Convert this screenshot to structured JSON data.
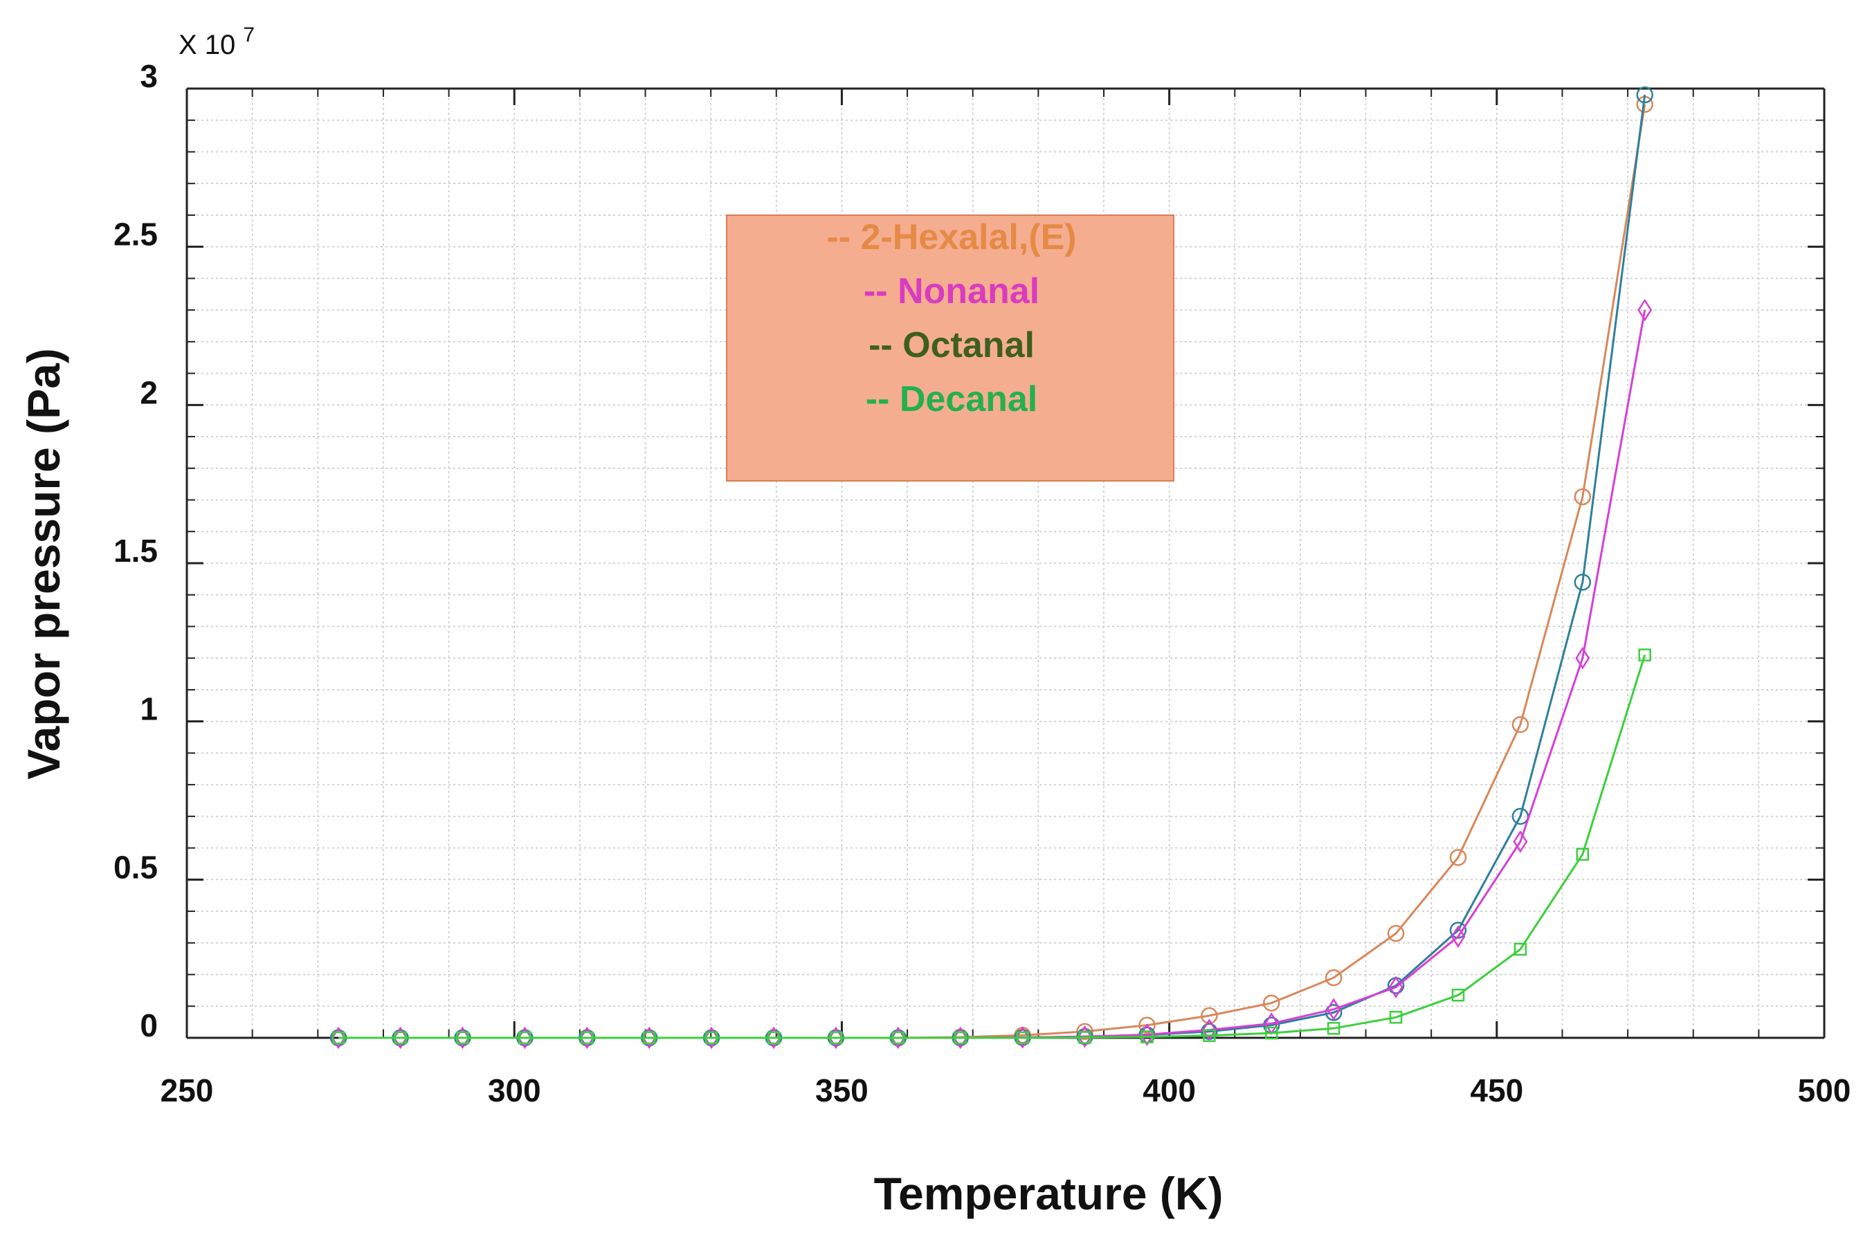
{
  "chart_data": {
    "type": "line",
    "title": "",
    "xlabel": "Temperature (K)",
    "ylabel": "Vapor pressure (Pa)",
    "y_multiplier_label": "X 10",
    "y_multiplier_exponent": "7",
    "xlim": [
      250,
      500
    ],
    "ylim": [
      0,
      3
    ],
    "x_ticks": [
      250,
      300,
      350,
      400,
      450,
      500
    ],
    "y_ticks": [
      0,
      0.5,
      1,
      1.5,
      2,
      2.5,
      3
    ],
    "y_tick_labels": [
      "0",
      "0.5",
      "1",
      "1.5",
      "2",
      "2.5",
      "3"
    ],
    "grid": true,
    "legend_position": "upper-center",
    "legend_background": "#f5ad90",
    "legend": [
      {
        "label": "--  2-Hexalal,(E)",
        "color": "#e58a45"
      },
      {
        "label": "-- Nonanal",
        "color": "#d93bc1"
      },
      {
        "label": "-- Octanal",
        "color": "#3f5f1f"
      },
      {
        "label": "-- Decanal",
        "color": "#22b14c"
      }
    ],
    "x": [
      273.15,
      282.6,
      292.1,
      301.6,
      311.1,
      320.6,
      330.1,
      339.6,
      349.1,
      358.6,
      368.1,
      377.6,
      387.1,
      396.6,
      406.1,
      415.6,
      425.1,
      434.6,
      444.1,
      453.6,
      463.1,
      472.6
    ],
    "series": [
      {
        "name": "2-Hexalal,(E)",
        "color": "#d9875a",
        "marker": "circle",
        "values": [
          0,
          0,
          0,
          0,
          0,
          0,
          0,
          0,
          0,
          0,
          0.002,
          0.008,
          0.02,
          0.04,
          0.07,
          0.11,
          0.19,
          0.33,
          0.57,
          0.99,
          1.71,
          2.95
        ]
      },
      {
        "name": "Octanal",
        "color": "#2e7f9a",
        "marker": "circle",
        "values": [
          0,
          0,
          0,
          0,
          0,
          0,
          0,
          0,
          0,
          0,
          0,
          0.001,
          0.004,
          0.009,
          0.02,
          0.04,
          0.08,
          0.165,
          0.34,
          0.7,
          1.44,
          2.98
        ]
      },
      {
        "name": "Nonanal",
        "color": "#d63fd6",
        "marker": "diamond",
        "values": [
          0,
          0,
          0,
          0,
          0,
          0,
          0,
          0,
          0,
          0,
          0,
          0.001,
          0.004,
          0.01,
          0.025,
          0.045,
          0.09,
          0.16,
          0.32,
          0.62,
          1.2,
          2.3
        ]
      },
      {
        "name": "Decanal",
        "color": "#3ccf3c",
        "marker": "square",
        "values": [
          0,
          0,
          0,
          0,
          0,
          0,
          0,
          0,
          0,
          0,
          0,
          0,
          0.001,
          0.003,
          0.007,
          0.015,
          0.03,
          0.065,
          0.135,
          0.28,
          0.58,
          1.21
        ]
      }
    ],
    "annotations": []
  }
}
